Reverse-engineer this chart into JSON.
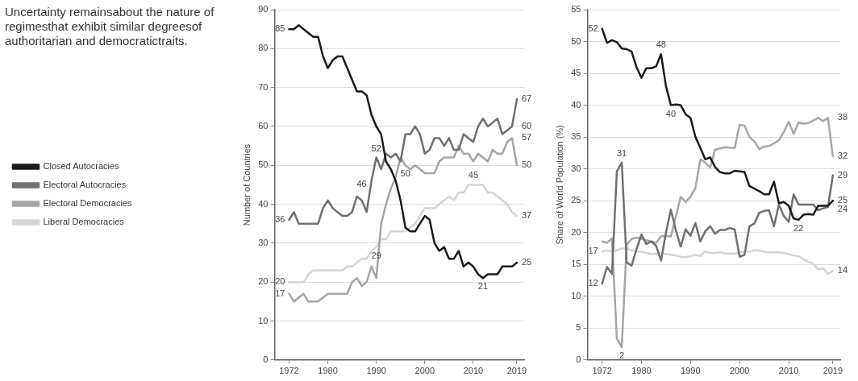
{
  "chart_data": [
    {
      "type": "line",
      "title": "Uncertainty remainsabout the nature of regimesthat exhibit similar degreesof authoritarian and democratictraits.",
      "ylabel": "Number of Countries",
      "x": [
        1972,
        1973,
        1974,
        1975,
        1976,
        1977,
        1978,
        1979,
        1980,
        1981,
        1982,
        1983,
        1984,
        1985,
        1986,
        1987,
        1988,
        1989,
        1990,
        1991,
        1992,
        1993,
        1994,
        1995,
        1996,
        1997,
        1998,
        1999,
        2000,
        2001,
        2002,
        2003,
        2004,
        2005,
        2006,
        2007,
        2008,
        2009,
        2010,
        2011,
        2012,
        2013,
        2014,
        2015,
        2016,
        2017,
        2018,
        2019
      ],
      "xlim": [
        1969,
        2020.5
      ],
      "xticks": [
        1972,
        1980,
        1990,
        2000,
        2010,
        2019
      ],
      "ylim": [
        0,
        90
      ],
      "yticks": [
        0,
        10,
        20,
        30,
        40,
        50,
        60,
        70,
        80,
        90
      ],
      "grid": "y",
      "legend": "left",
      "series": [
        {
          "name": "Closed Autocracies",
          "color": "#1a1a1a",
          "values": [
            85,
            85,
            86,
            85,
            84,
            83,
            83,
            78,
            75,
            77,
            78,
            78,
            75,
            72,
            69,
            69,
            68,
            63,
            60,
            58,
            51,
            49,
            46,
            41,
            34,
            33,
            33,
            35,
            37,
            36,
            30,
            28,
            29,
            26,
            26,
            28,
            24,
            25,
            24,
            22,
            21,
            22,
            22,
            22,
            24,
            24,
            24,
            25
          ],
          "value_labels": [
            "85",
            null,
            null,
            null,
            null,
            null,
            null,
            null,
            null,
            null,
            null,
            null,
            null,
            null,
            null,
            null,
            null,
            null,
            null,
            null,
            null,
            null,
            null,
            null,
            null,
            null,
            null,
            null,
            null,
            null,
            null,
            null,
            null,
            null,
            null,
            null,
            null,
            null,
            null,
            null,
            "21",
            null,
            null,
            null,
            null,
            null,
            null,
            "25"
          ]
        },
        {
          "name": "Electoral Autocracies",
          "color": "#707070",
          "values": [
            36,
            38,
            35,
            35,
            35,
            35,
            35,
            39,
            41,
            39,
            38,
            37,
            37,
            38,
            42,
            41,
            38,
            46,
            52,
            49,
            53,
            52,
            53,
            51,
            58,
            58,
            60,
            58,
            53,
            54,
            57,
            57,
            55,
            57,
            54,
            54,
            58,
            57,
            56,
            60,
            62,
            60,
            61,
            62,
            58,
            59,
            60,
            67
          ],
          "value_labels": [
            "36",
            null,
            null,
            null,
            null,
            null,
            null,
            null,
            null,
            null,
            null,
            null,
            null,
            null,
            null,
            null,
            null,
            "46",
            "52",
            null,
            null,
            null,
            null,
            null,
            null,
            null,
            null,
            null,
            null,
            null,
            null,
            null,
            null,
            null,
            null,
            null,
            null,
            null,
            null,
            null,
            null,
            null,
            null,
            null,
            null,
            null,
            "60",
            "67"
          ]
        },
        {
          "name": "Electoral Democracies",
          "color": "#a6a6a6",
          "values": [
            17,
            15,
            16,
            17,
            15,
            15,
            15,
            16,
            17,
            17,
            17,
            17,
            17,
            20,
            21,
            19,
            20,
            24,
            21,
            35,
            40,
            44,
            47,
            52,
            50,
            49,
            50,
            49,
            48,
            48,
            48,
            51,
            52,
            52,
            52,
            55,
            53,
            53,
            51,
            53,
            52,
            51,
            54,
            53,
            53,
            56,
            57,
            50
          ],
          "value_labels": [
            "17",
            null,
            null,
            null,
            null,
            null,
            null,
            null,
            null,
            null,
            null,
            null,
            null,
            null,
            null,
            null,
            null,
            null,
            null,
            null,
            null,
            null,
            null,
            null,
            "50",
            null,
            null,
            null,
            null,
            null,
            null,
            null,
            null,
            null,
            null,
            null,
            null,
            null,
            null,
            null,
            null,
            null,
            null,
            null,
            null,
            null,
            "57",
            "50"
          ]
        },
        {
          "name": "Liberal Democracies",
          "color": "#d4d4d4",
          "values": [
            20,
            20,
            20,
            20,
            22,
            23,
            23,
            23,
            23,
            23,
            23,
            23,
            24,
            24,
            25,
            26,
            26,
            28,
            29,
            31,
            31,
            33,
            33,
            33,
            33,
            34,
            35,
            37,
            39,
            39,
            39,
            40,
            41,
            42,
            41,
            43,
            43,
            45,
            45,
            45,
            45,
            43,
            43,
            42,
            41,
            40,
            38,
            37
          ],
          "value_labels": [
            "20",
            null,
            null,
            null,
            null,
            null,
            null,
            null,
            null,
            null,
            null,
            null,
            null,
            null,
            null,
            null,
            null,
            null,
            "29",
            null,
            null,
            null,
            null,
            null,
            null,
            null,
            null,
            null,
            null,
            null,
            null,
            null,
            null,
            null,
            null,
            null,
            null,
            null,
            "45",
            null,
            null,
            null,
            null,
            null,
            null,
            null,
            null,
            "37"
          ]
        }
      ]
    },
    {
      "type": "line",
      "ylabel": "Share of World Population (%)",
      "x": [
        1972,
        1973,
        1974,
        1975,
        1976,
        1977,
        1978,
        1979,
        1980,
        1981,
        1982,
        1983,
        1984,
        1985,
        1986,
        1987,
        1988,
        1989,
        1990,
        1991,
        1992,
        1993,
        1994,
        1995,
        1996,
        1997,
        1998,
        1999,
        2000,
        2001,
        2002,
        2003,
        2004,
        2005,
        2006,
        2007,
        2008,
        2009,
        2010,
        2011,
        2012,
        2013,
        2014,
        2015,
        2016,
        2017,
        2018,
        2019
      ],
      "xlim": [
        1969,
        2020.5
      ],
      "xticks": [
        1972,
        1980,
        1990,
        2000,
        2010,
        2019
      ],
      "ylim": [
        0,
        55
      ],
      "yticks": [
        0,
        5,
        10,
        15,
        20,
        25,
        30,
        35,
        40,
        45,
        50,
        55
      ],
      "grid": "y",
      "series": [
        {
          "color": "#1a1a1a",
          "values": [
            52,
            49.8,
            50.2,
            49.9,
            48.9,
            48.8,
            48.4,
            46,
            44.3,
            45.8,
            45.8,
            46.1,
            48,
            43,
            40,
            40.1,
            40,
            38.6,
            38,
            35,
            33.3,
            31.5,
            31.8,
            30.3,
            29.5,
            29.3,
            29.3,
            29.7,
            29.6,
            29.5,
            27.3,
            26.9,
            26.5,
            26,
            26,
            28,
            24.6,
            24.8,
            24.2,
            22.2,
            22,
            22.8,
            22.9,
            22.8,
            24.2,
            24.2,
            24.2,
            25
          ],
          "value_labels": [
            "52",
            null,
            null,
            null,
            null,
            null,
            null,
            null,
            null,
            null,
            null,
            null,
            "48",
            null,
            "40",
            null,
            null,
            null,
            null,
            null,
            null,
            null,
            null,
            null,
            null,
            null,
            null,
            null,
            null,
            null,
            null,
            null,
            null,
            null,
            null,
            null,
            null,
            null,
            null,
            null,
            "22",
            null,
            null,
            null,
            null,
            null,
            null,
            "25"
          ]
        },
        {
          "color": "#707070",
          "values": [
            12,
            14.6,
            13.5,
            29.6,
            31,
            15.3,
            14.8,
            17.4,
            19.7,
            18.2,
            18.6,
            17.9,
            15.6,
            20,
            23.6,
            20.4,
            17.8,
            20.5,
            19.5,
            21.5,
            18.6,
            20.2,
            21,
            19.8,
            20.4,
            20.4,
            20.7,
            20.5,
            16.2,
            16.5,
            21,
            21.4,
            23.1,
            23.4,
            23.5,
            21,
            24.4,
            22.6,
            21.7,
            26,
            24.4,
            24.4,
            24.4,
            24.4,
            23.5,
            23.8,
            24,
            29
          ],
          "value_labels": [
            "12",
            null,
            null,
            null,
            "31",
            null,
            null,
            null,
            null,
            null,
            null,
            null,
            null,
            null,
            null,
            null,
            null,
            null,
            null,
            null,
            null,
            null,
            null,
            null,
            null,
            null,
            null,
            null,
            null,
            null,
            null,
            null,
            null,
            null,
            null,
            null,
            null,
            null,
            null,
            null,
            null,
            null,
            null,
            null,
            null,
            null,
            "24",
            "29"
          ]
        },
        {
          "color": "#a6a6a6",
          "values": [
            18.6,
            18.4,
            19.1,
            3.3,
            2,
            18.1,
            19,
            19.2,
            19,
            18.8,
            18.6,
            18.4,
            19.4,
            19.5,
            19.4,
            22.5,
            25.6,
            24.8,
            25.6,
            27,
            31.5,
            31,
            30.2,
            33,
            33.2,
            33.4,
            33.3,
            33.3,
            36.9,
            36.8,
            35,
            34.3,
            33.1,
            33.5,
            33.6,
            34,
            34.5,
            35.8,
            37.4,
            35.5,
            37.3,
            37.1,
            37.2,
            37.6,
            38,
            37.5,
            38,
            32
          ],
          "value_labels": [
            null,
            null,
            null,
            null,
            "2",
            null,
            null,
            null,
            null,
            null,
            null,
            null,
            null,
            null,
            null,
            null,
            null,
            null,
            null,
            null,
            null,
            null,
            null,
            null,
            null,
            null,
            null,
            null,
            null,
            null,
            null,
            null,
            null,
            null,
            null,
            null,
            null,
            null,
            null,
            null,
            null,
            null,
            null,
            null,
            null,
            null,
            "38",
            "32"
          ]
        },
        {
          "color": "#d4d4d4",
          "values": [
            17,
            17.2,
            17,
            17.2,
            17.5,
            17.5,
            17.2,
            17,
            17,
            16.8,
            16.6,
            16.7,
            16.8,
            16.6,
            16.5,
            16.4,
            16.2,
            16.1,
            16.3,
            16.5,
            16.3,
            17,
            16.8,
            16.8,
            16.9,
            16.7,
            16.7,
            16.7,
            16.9,
            17,
            17,
            17.2,
            17.2,
            17,
            16.9,
            16.9,
            16.9,
            16.8,
            16.6,
            16.4,
            16.3,
            15.8,
            15.4,
            15.1,
            14.2,
            14.4,
            13.5,
            14
          ],
          "value_labels": [
            "17",
            null,
            null,
            null,
            null,
            null,
            null,
            null,
            null,
            null,
            null,
            null,
            null,
            null,
            null,
            null,
            null,
            null,
            null,
            null,
            null,
            null,
            null,
            null,
            null,
            null,
            null,
            null,
            null,
            null,
            null,
            null,
            null,
            null,
            null,
            null,
            null,
            null,
            null,
            null,
            null,
            null,
            null,
            null,
            null,
            null,
            null,
            "14"
          ]
        }
      ]
    }
  ]
}
